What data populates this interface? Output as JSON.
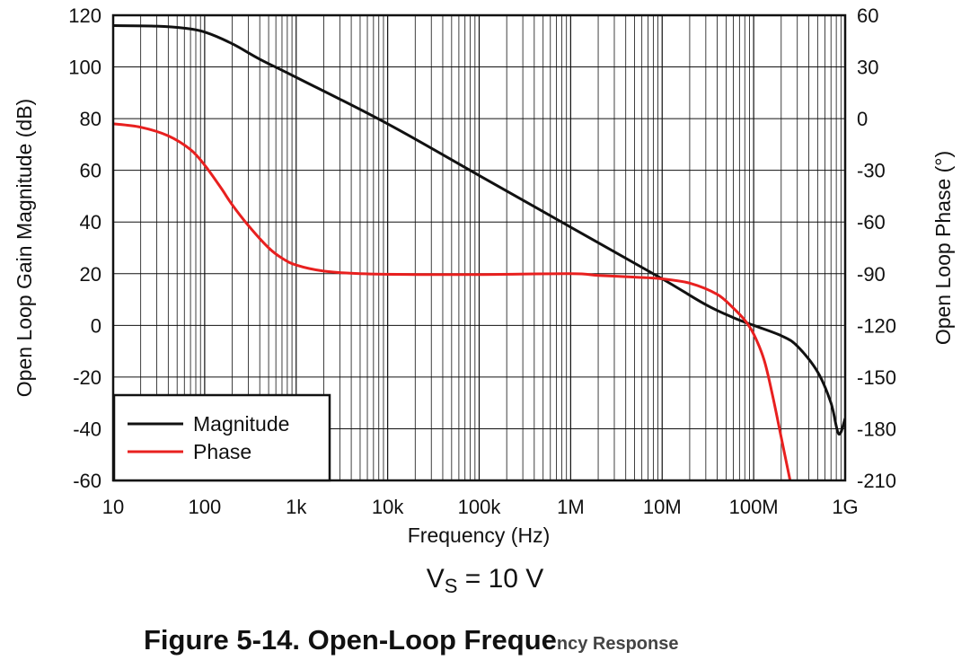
{
  "chart_data": {
    "type": "line",
    "x_scale": "log",
    "xlim": [
      10,
      1000000000
    ],
    "x_ticks": [
      10,
      100,
      1000,
      10000,
      100000,
      1000000,
      10000000,
      100000000,
      1000000000
    ],
    "x_tick_labels": [
      "10",
      "100",
      "1k",
      "10k",
      "100k",
      "1M",
      "10M",
      "100M",
      "1G"
    ],
    "xlabel": "Frequency (Hz)",
    "ylabel_left": "Open Loop Gain Magnitude (dB)",
    "ylim_left": [
      -60,
      120
    ],
    "y_ticks_left": [
      "120",
      "100",
      "80",
      "60",
      "40",
      "20",
      "0",
      "-20",
      "-40",
      "-60"
    ],
    "ylabel_right": "Open Loop Phase (°)",
    "ylim_right": [
      -210,
      60
    ],
    "y_ticks_right": [
      "60",
      "30",
      "0",
      "-30",
      "-60",
      "-90",
      "-120",
      "-150",
      "-180",
      "-210"
    ],
    "grid": true,
    "legend_position": "bottom-left",
    "series": [
      {
        "name": "Magnitude",
        "axis": "left",
        "color": "#111111",
        "points": [
          [
            10,
            116
          ],
          [
            30,
            115.8
          ],
          [
            60,
            115
          ],
          [
            100,
            113.5
          ],
          [
            200,
            109
          ],
          [
            400,
            103
          ],
          [
            1000,
            96
          ],
          [
            10000,
            78
          ],
          [
            100000,
            58
          ],
          [
            1000000,
            38
          ],
          [
            10000000,
            18
          ],
          [
            30000000,
            8
          ],
          [
            60000000,
            3
          ],
          [
            100000000,
            0
          ],
          [
            200000000,
            -4
          ],
          [
            300000000,
            -8
          ],
          [
            500000000,
            -18
          ],
          [
            700000000,
            -30
          ],
          [
            850000000,
            -42
          ],
          [
            1000000000,
            -36
          ]
        ]
      },
      {
        "name": "Phase",
        "axis": "right",
        "color": "#e8201f",
        "points": [
          [
            10,
            -3
          ],
          [
            20,
            -5
          ],
          [
            40,
            -10
          ],
          [
            70,
            -18
          ],
          [
            100,
            -27
          ],
          [
            150,
            -40
          ],
          [
            200,
            -50
          ],
          [
            300,
            -62
          ],
          [
            500,
            -75
          ],
          [
            700,
            -81
          ],
          [
            1000,
            -85
          ],
          [
            2000,
            -88.5
          ],
          [
            5000,
            -90
          ],
          [
            20000,
            -90.5
          ],
          [
            100000,
            -90.5
          ],
          [
            1000000,
            -90
          ],
          [
            2000000,
            -91
          ],
          [
            5000000,
            -92
          ],
          [
            10000000,
            -93
          ],
          [
            20000000,
            -95.5
          ],
          [
            40000000,
            -102
          ],
          [
            60000000,
            -110
          ],
          [
            80000000,
            -117
          ],
          [
            100000000,
            -125
          ],
          [
            130000000,
            -140
          ],
          [
            160000000,
            -160
          ],
          [
            200000000,
            -185
          ],
          [
            250000000,
            -210
          ]
        ]
      }
    ]
  },
  "legend": [
    {
      "label": "Magnitude",
      "color": "#111111"
    },
    {
      "label": "Phase",
      "color": "#e8201f"
    }
  ],
  "conditions": {
    "prefix": "V",
    "sub": "S",
    "suffix": " = 10 V"
  },
  "caption": {
    "main": "Figure 5-14. Open-Loop Freque",
    "garbled": "ncy Response"
  }
}
